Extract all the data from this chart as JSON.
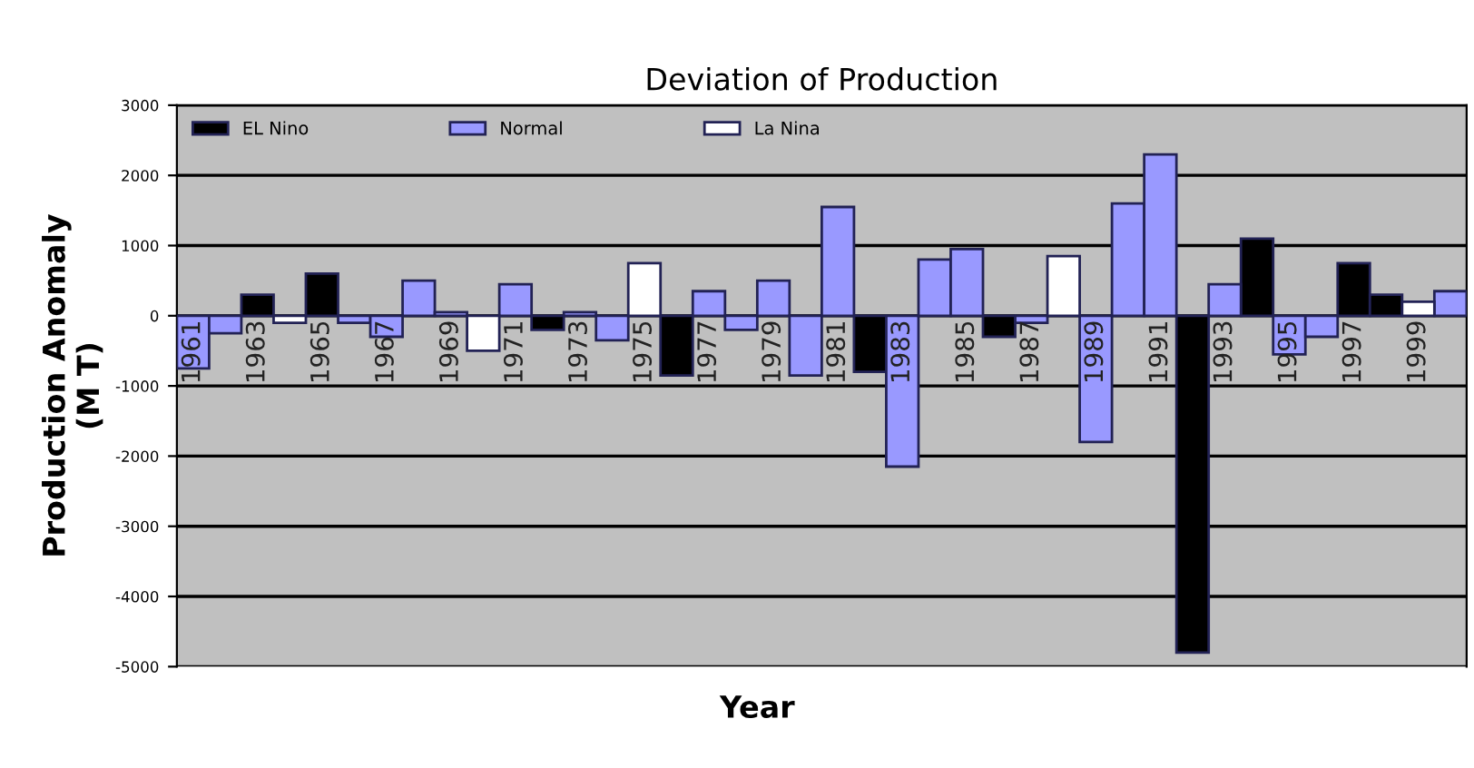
{
  "chart_data": {
    "type": "bar",
    "title": "Deviation of Production",
    "xlabel": "Year",
    "ylabel": "Production Anomaly\n(M T)",
    "categories": [
      "1961",
      null,
      "1963",
      null,
      "1965",
      null,
      "1967",
      null,
      "1969",
      null,
      "1971",
      null,
      "1973",
      null,
      "1975",
      null,
      "1977",
      null,
      "1979",
      null,
      "1981",
      null,
      "1983",
      null,
      "1985",
      null,
      "1987",
      null,
      "1989",
      null,
      "1991",
      null,
      "1993",
      null,
      "1995",
      null,
      "1997",
      null,
      "1999",
      null
    ],
    "series": [
      {
        "name": "EL Nino",
        "color": "#000000",
        "values": [
          null,
          null,
          300,
          null,
          600,
          null,
          null,
          null,
          null,
          null,
          null,
          -200,
          null,
          null,
          null,
          -850,
          null,
          null,
          null,
          null,
          null,
          -800,
          null,
          null,
          null,
          -300,
          null,
          null,
          null,
          null,
          null,
          -4800,
          null,
          1100,
          null,
          null,
          750,
          300,
          null,
          null
        ]
      },
      {
        "name": "Normal",
        "color": "#9999ff",
        "values": [
          -750,
          -250,
          null,
          null,
          null,
          -100,
          -300,
          500,
          50,
          null,
          450,
          null,
          50,
          -350,
          null,
          null,
          350,
          -200,
          500,
          -850,
          1550,
          null,
          -2150,
          800,
          950,
          null,
          -100,
          null,
          -1800,
          1600,
          2300,
          null,
          450,
          null,
          -550,
          -300,
          null,
          null,
          null,
          350
        ]
      },
      {
        "name": "La Nina",
        "color": "#ffffff",
        "values": [
          null,
          null,
          null,
          -100,
          null,
          null,
          null,
          null,
          null,
          -500,
          null,
          null,
          null,
          null,
          750,
          null,
          null,
          null,
          null,
          null,
          null,
          null,
          null,
          null,
          null,
          null,
          null,
          850,
          null,
          null,
          null,
          null,
          null,
          null,
          null,
          null,
          null,
          null,
          200,
          null
        ]
      }
    ],
    "ylim": [
      -5000,
      3000
    ],
    "yticks": [
      -5000,
      -4000,
      -3000,
      -2000,
      -1000,
      0,
      1000,
      2000,
      3000
    ],
    "grid": "y",
    "legend": "top left"
  }
}
